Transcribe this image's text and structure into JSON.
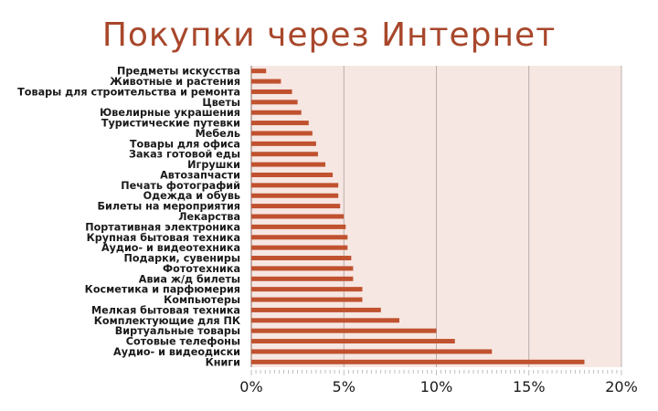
{
  "title": "Покупки через Интернет",
  "chart_data": {
    "type": "bar",
    "orientation": "horizontal",
    "categories": [
      "Предметы искусства",
      "Животные и растения",
      "Товары для строительства и ремонта",
      "Цветы",
      "Ювелирные украшения",
      "Туристические путевки",
      "Мебель",
      "Товары для офиса",
      "Заказ готовой еды",
      "Игрушки",
      "Автозапчасти",
      "Печать фотографий",
      "Одежда и обувь",
      "Билеты на мероприятия",
      "Лекарства",
      "Портативная электроника",
      "Крупная бытовая техника",
      "Аудио- и видеотехника",
      "Подарки, сувениры",
      "Фототехника",
      "Авиа ж/д билеты",
      "Косметика и парфюмерия",
      "Компьютеры",
      "Мелкая бытовая техника",
      "Комплектующие для ПК",
      "Виртуальные товары",
      "Сотовые телефоны",
      "Аудио- и видеодиски",
      "Книги"
    ],
    "values": [
      0.8,
      1.6,
      2.2,
      2.5,
      2.7,
      3.1,
      3.3,
      3.5,
      3.6,
      4.0,
      4.4,
      4.7,
      4.7,
      4.8,
      5.0,
      5.1,
      5.2,
      5.2,
      5.4,
      5.5,
      5.5,
      6.0,
      6.0,
      7.0,
      8.0,
      10.0,
      11.0,
      13.0,
      18.0
    ],
    "xticks": [
      "0%",
      "5%",
      "10%",
      "15%",
      "20%"
    ],
    "xlim": [
      0,
      20
    ],
    "bar_color": "#c0522f",
    "plot_background": "#f7e7e3",
    "grid": true,
    "xlabel": "",
    "ylabel": ""
  }
}
